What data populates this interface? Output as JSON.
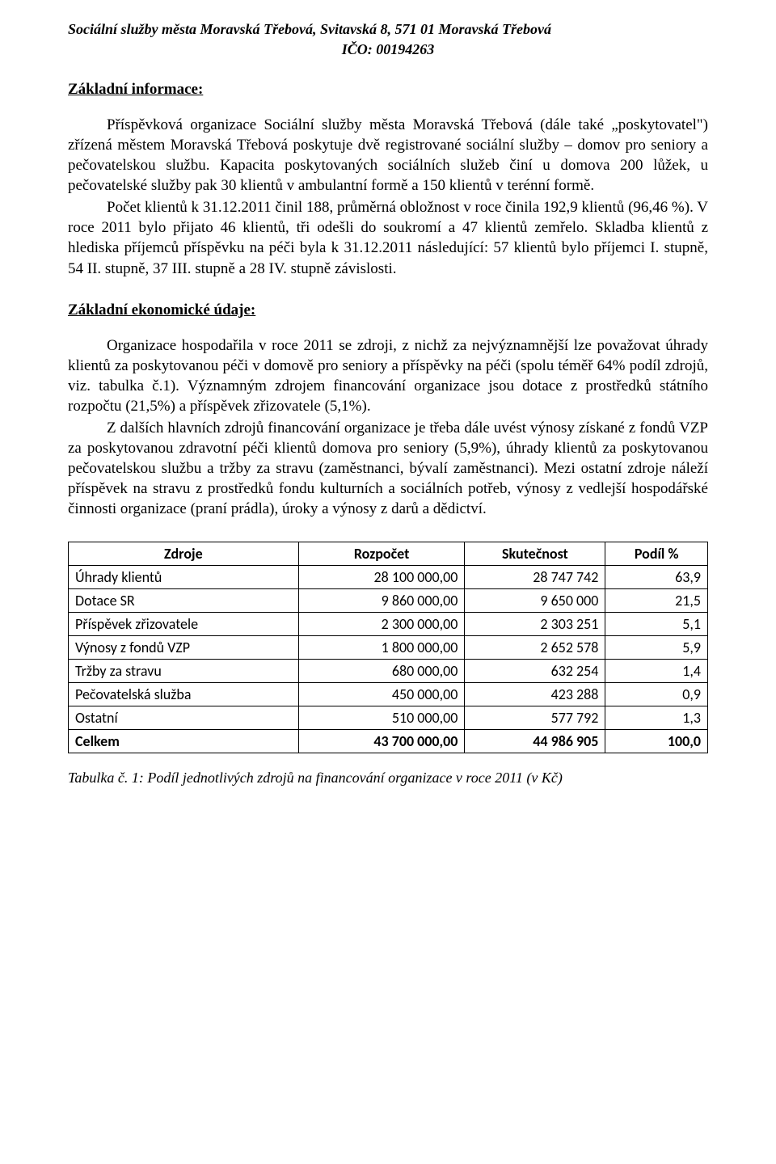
{
  "header": {
    "line1": "Sociální služby města Moravská Třebová, Svitavská 8, 571 01 Moravská Třebová",
    "ico": "IČO: 00194263"
  },
  "section1": {
    "title": "Základní informace:",
    "para1": "Příspěvková organizace Sociální služby města Moravská Třebová (dále také „poskytovatel\") zřízená městem Moravská Třebová poskytuje dvě registrované sociální služby – domov pro seniory a pečovatelskou službu. Kapacita poskytovaných sociálních služeb činí u domova 200 lůžek, u pečovatelské služby pak 30 klientů v ambulantní formě a 150 klientů v terénní formě.",
    "para2": "Počet klientů k 31.12.2011 činil 188, průměrná obložnost v roce činila 192,9 klientů (96,46 %). V roce 2011 bylo přijato 46 klientů, tři odešli do soukromí a 47 klientů zemřelo. Skladba klientů z hlediska příjemců příspěvku na péči byla k 31.12.2011 následující: 57 klientů bylo příjemci I. stupně, 54 II. stupně, 37 III. stupně a 28 IV. stupně závislosti."
  },
  "section2": {
    "title": "Základní ekonomické údaje:",
    "para1": "Organizace hospodařila v roce 2011 se zdroji, z nichž za nejvýznamnější lze považovat úhrady klientů za poskytovanou péči v domově pro seniory a příspěvky na péči (spolu téměř 64% podíl zdrojů, viz. tabulka č.1). Významným zdrojem financování organizace jsou dotace z prostředků státního rozpočtu (21,5%) a příspěvek zřizovatele (5,1%).",
    "para2": "Z dalších hlavních zdrojů financování organizace je třeba dále uvést výnosy získané z fondů VZP za poskytovanou zdravotní péči klientů domova pro seniory (5,9%), úhrady klientů za poskytovanou pečovatelskou službu a tržby za stravu (zaměstnanci, bývalí zaměstnanci). Mezi ostatní zdroje náleží příspěvek na stravu z prostředků fondu kulturních a sociálních potřeb, výnosy z vedlejší hospodářské činnosti organizace (praní prádla), úroky a výnosy z darů a dědictví."
  },
  "table": {
    "columns": [
      "Zdroje",
      "Rozpočet",
      "Skutečnost",
      "Podíl %"
    ],
    "col_widths": [
      "36%",
      "26%",
      "22%",
      "16%"
    ],
    "font_family": "Calibri, Arial, sans-serif",
    "font_size": 18,
    "border_color": "#000000",
    "rows": [
      {
        "label": "Úhrady klientů",
        "budget": "28 100 000,00",
        "actual": "28 747 742",
        "share": "63,9"
      },
      {
        "label": "Dotace SR",
        "budget": "9 860 000,00",
        "actual": "9 650 000",
        "share": "21,5"
      },
      {
        "label": "Příspěvek zřizovatele",
        "budget": "2 300 000,00",
        "actual": "2 303 251",
        "share": "5,1"
      },
      {
        "label": "Výnosy z fondů VZP",
        "budget": "1 800 000,00",
        "actual": "2 652 578",
        "share": "5,9"
      },
      {
        "label": "Tržby za stravu",
        "budget": "680 000,00",
        "actual": "632 254",
        "share": "1,4"
      },
      {
        "label": "Pečovatelská služba",
        "budget": "450 000,00",
        "actual": "423 288",
        "share": "0,9"
      },
      {
        "label": "Ostatní",
        "budget": "510 000,00",
        "actual": "577 792",
        "share": "1,3"
      }
    ],
    "total": {
      "label": "Celkem",
      "budget": "43 700 000,00",
      "actual": "44 986 905",
      "share": "100,0"
    }
  },
  "caption": "Tabulka č. 1: Podíl jednotlivých zdrojů na financování organizace v roce 2011 (v Kč)"
}
